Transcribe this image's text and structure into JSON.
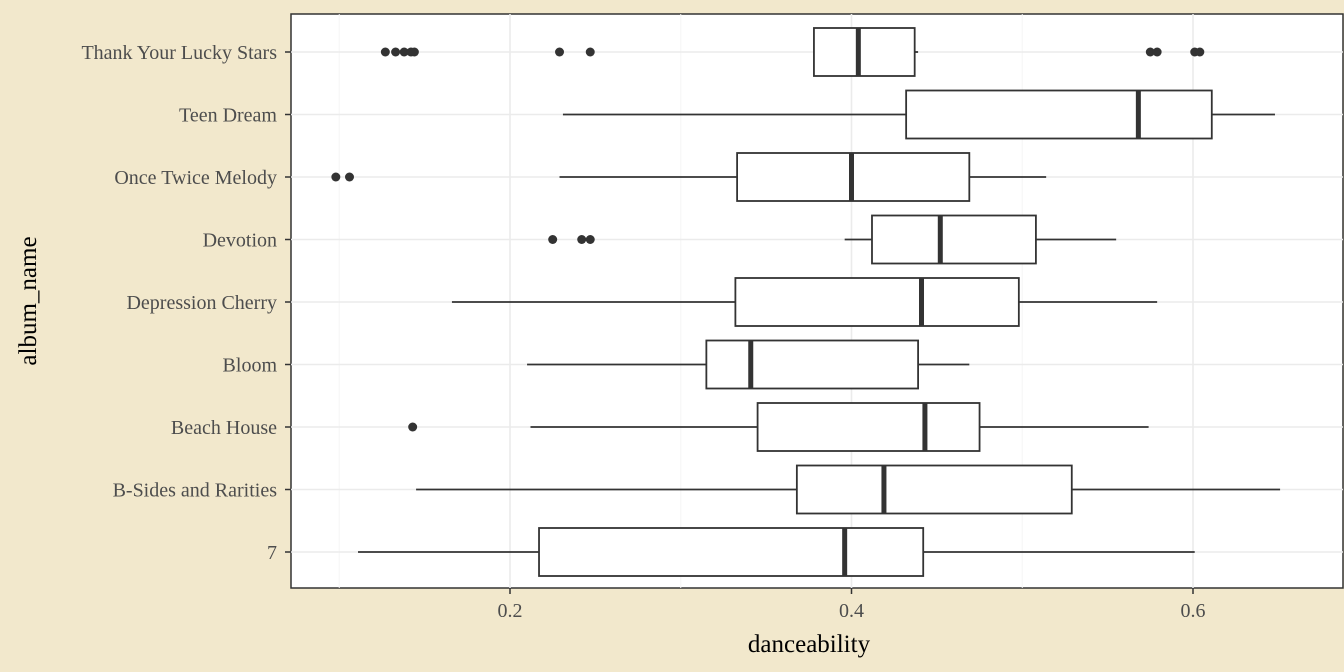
{
  "chart_data": {
    "type": "boxplot",
    "orientation": "horizontal",
    "xlabel": "danceability",
    "ylabel": "album_name",
    "xlim": [
      0.07,
      0.67
    ],
    "x_ticks": [
      0.2,
      0.4,
      0.6
    ],
    "x_tick_labels": [
      "0.2",
      "0.4",
      "0.6"
    ],
    "grid": true,
    "categories": [
      "7",
      "B-Sides and Rarities",
      "Beach House",
      "Bloom",
      "Depression Cherry",
      "Devotion",
      "Once Twice Melody",
      "Teen Dream",
      "Thank Your Lucky Stars"
    ],
    "boxes": [
      {
        "category": "7",
        "whisker_low": 0.111,
        "q1": 0.217,
        "median": 0.396,
        "q3": 0.442,
        "whisker_high": 0.601,
        "outliers": []
      },
      {
        "category": "B-Sides and Rarities",
        "whisker_low": 0.145,
        "q1": 0.368,
        "median": 0.419,
        "q3": 0.529,
        "whisker_high": 0.651,
        "outliers": []
      },
      {
        "category": "Beach House",
        "whisker_low": 0.212,
        "q1": 0.345,
        "median": 0.443,
        "q3": 0.475,
        "whisker_high": 0.574,
        "outliers": [
          0.143
        ]
      },
      {
        "category": "Bloom",
        "whisker_low": 0.21,
        "q1": 0.315,
        "median": 0.341,
        "q3": 0.439,
        "whisker_high": 0.469,
        "outliers": []
      },
      {
        "category": "Depression Cherry",
        "whisker_low": 0.166,
        "q1": 0.332,
        "median": 0.441,
        "q3": 0.498,
        "whisker_high": 0.579,
        "outliers": []
      },
      {
        "category": "Devotion",
        "whisker_low": 0.396,
        "q1": 0.412,
        "median": 0.452,
        "q3": 0.508,
        "whisker_high": 0.555,
        "outliers": [
          0.225,
          0.242,
          0.247
        ]
      },
      {
        "category": "Once Twice Melody",
        "whisker_low": 0.229,
        "q1": 0.333,
        "median": 0.4,
        "q3": 0.469,
        "whisker_high": 0.514,
        "outliers": [
          0.098,
          0.106
        ]
      },
      {
        "category": "Teen Dream",
        "whisker_low": 0.231,
        "q1": 0.432,
        "median": 0.568,
        "q3": 0.611,
        "whisker_high": 0.648,
        "outliers": []
      },
      {
        "category": "Thank Your Lucky Stars",
        "whisker_low": 0.378,
        "q1": 0.378,
        "median": 0.404,
        "q3": 0.437,
        "whisker_high": 0.439,
        "outliers": [
          0.127,
          0.133,
          0.138,
          0.142,
          0.144,
          0.229,
          0.247,
          0.575,
          0.579,
          0.601,
          0.604
        ]
      }
    ]
  },
  "colors": {
    "page_background": "#f2e8cc",
    "panel_background": "#ffffff",
    "box_line": "#333333"
  }
}
